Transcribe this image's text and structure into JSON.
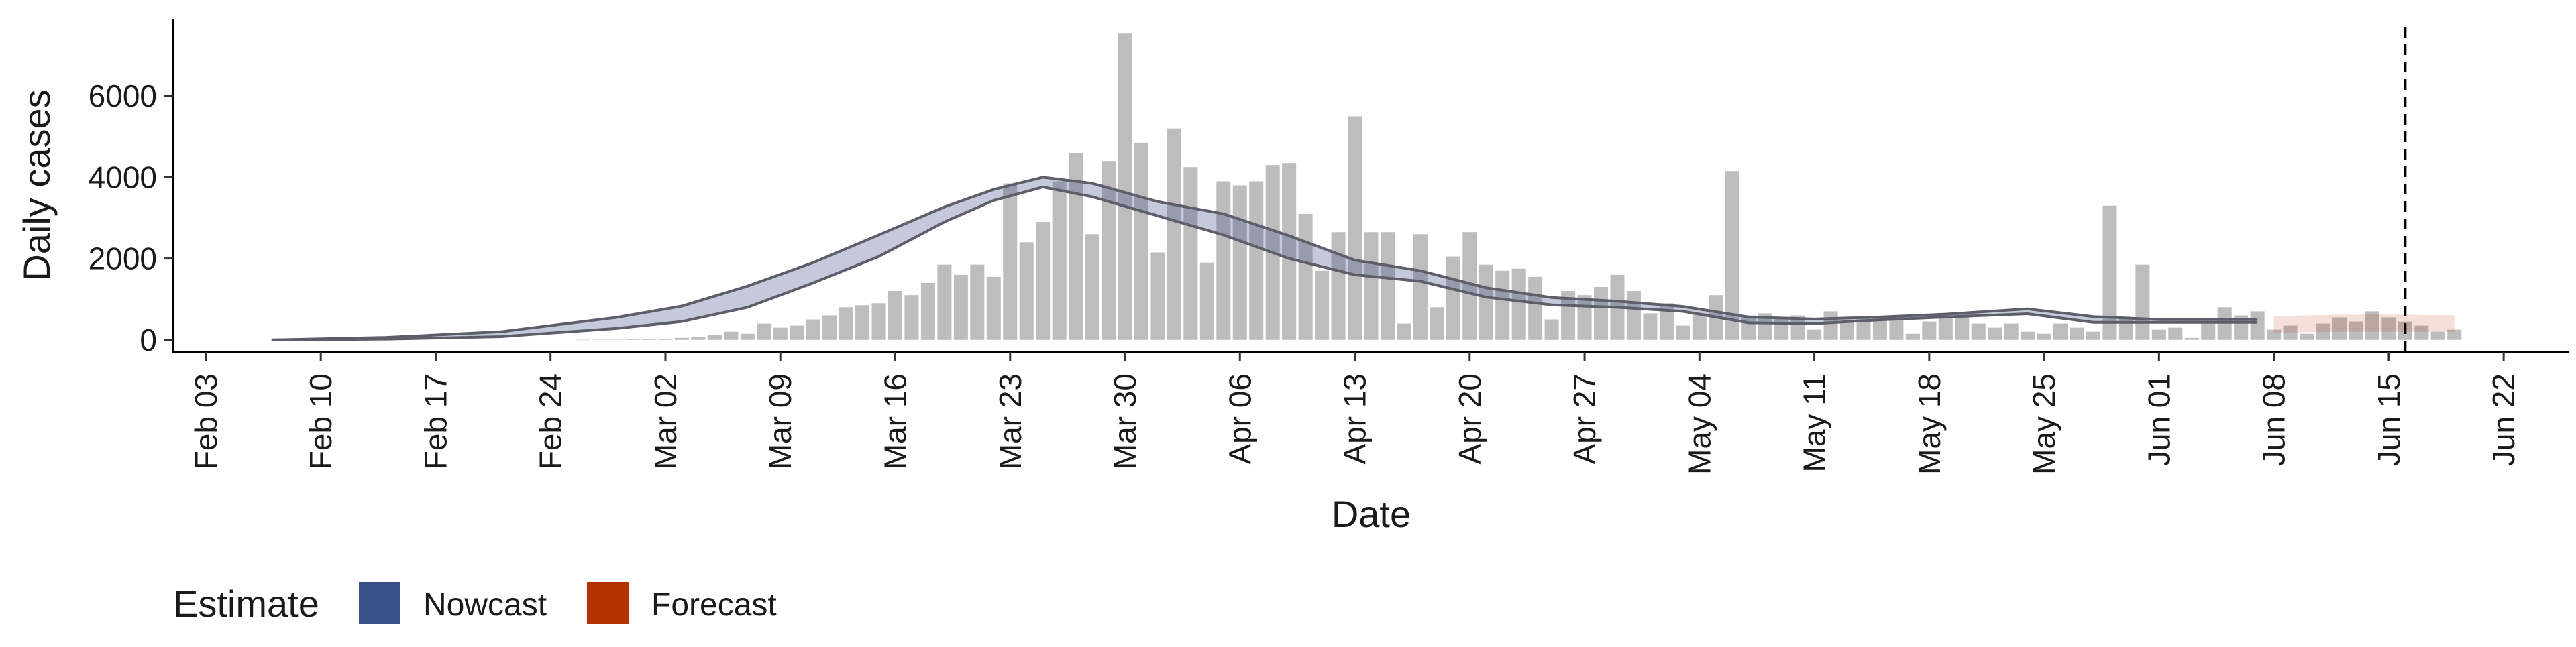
{
  "chart_data": {
    "type": "bar",
    "xlabel": "Date",
    "ylabel": "Daily cases",
    "ylim": [
      -300,
      7900
    ],
    "yticks": [
      0,
      2000,
      4000,
      6000
    ],
    "xlim": [
      "2020-02-01",
      "2020-06-26"
    ],
    "xticks": [
      "2020-02-03",
      "2020-02-10",
      "2020-02-17",
      "2020-02-24",
      "2020-03-02",
      "2020-03-09",
      "2020-03-16",
      "2020-03-23",
      "2020-03-30",
      "2020-04-06",
      "2020-04-13",
      "2020-04-20",
      "2020-04-27",
      "2020-05-04",
      "2020-05-11",
      "2020-05-18",
      "2020-05-25",
      "2020-06-01",
      "2020-06-08",
      "2020-06-15",
      "2020-06-22"
    ],
    "xtick_labels": [
      "Feb 03",
      "Feb 10",
      "Feb 17",
      "Feb 24",
      "Mar 02",
      "Mar 09",
      "Mar 16",
      "Mar 23",
      "Mar 30",
      "Apr 06",
      "Apr 13",
      "Apr 20",
      "Apr 27",
      "May 04",
      "May 11",
      "May 18",
      "May 25",
      "Jun 01",
      "Jun 08",
      "Jun 15",
      "Jun 22"
    ],
    "bars": {
      "start_date": "2020-02-26",
      "values": [
        3,
        5,
        8,
        12,
        20,
        30,
        50,
        80,
        120,
        200,
        150,
        400,
        300,
        350,
        500,
        600,
        800,
        850,
        900,
        1200,
        1100,
        1400,
        1850,
        1600,
        1850,
        1550,
        3850,
        2400,
        2900,
        3900,
        4600,
        2600,
        4400,
        7550,
        4850,
        2150,
        5200,
        4250,
        1900,
        3900,
        3800,
        3900,
        4300,
        4350,
        3100,
        1700,
        2650,
        5500,
        2650,
        2650,
        400,
        2600,
        800,
        2050,
        2650,
        1850,
        1700,
        1750,
        1550,
        500,
        1200,
        1100,
        1300,
        1600,
        1200,
        650,
        900,
        350,
        650,
        1100,
        4150,
        600,
        650,
        550,
        600,
        250,
        700,
        450,
        550,
        550,
        550,
        150,
        450,
        600,
        650,
        400,
        300,
        400,
        200,
        150,
        400,
        300,
        200,
        3300,
        550,
        1850,
        250,
        300,
        50,
        400,
        800,
        600,
        700,
        250,
        350,
        150,
        400,
        550,
        450,
        700,
        550,
        450,
        350,
        200,
        250
      ]
    },
    "series": [
      {
        "name": "Nowcast",
        "color": "#3a5089",
        "dates": [
          "2020-02-07",
          "2020-02-14",
          "2020-02-21",
          "2020-02-28",
          "2020-03-03",
          "2020-03-07",
          "2020-03-11",
          "2020-03-15",
          "2020-03-19",
          "2020-03-22",
          "2020-03-25",
          "2020-03-28",
          "2020-04-01",
          "2020-04-05",
          "2020-04-09",
          "2020-04-13",
          "2020-04-17",
          "2020-04-21",
          "2020-04-25",
          "2020-04-29",
          "2020-05-03",
          "2020-05-07",
          "2020-05-11",
          "2020-05-15",
          "2020-05-19",
          "2020-05-24",
          "2020-05-28",
          "2020-06-01",
          "2020-06-05",
          "2020-06-07"
        ],
        "upper": [
          0,
          60,
          200,
          550,
          830,
          1320,
          1900,
          2580,
          3270,
          3700,
          4000,
          3850,
          3400,
          3100,
          2560,
          1960,
          1700,
          1280,
          1040,
          950,
          820,
          560,
          510,
          560,
          630,
          760,
          570,
          500,
          500,
          500
        ],
        "lower": [
          0,
          20,
          80,
          280,
          450,
          800,
          1400,
          2050,
          2900,
          3430,
          3760,
          3520,
          3050,
          2580,
          2000,
          1600,
          1440,
          1050,
          860,
          800,
          700,
          420,
          400,
          490,
          560,
          640,
          430,
          430,
          430,
          430
        ]
      },
      {
        "name": "Forecast",
        "color": "#b33200",
        "dates": [
          "2020-06-08",
          "2020-06-12",
          "2020-06-16",
          "2020-06-19"
        ],
        "upper": [
          580,
          620,
          620,
          600
        ],
        "lower": [
          180,
          200,
          200,
          200
        ]
      }
    ],
    "vline_date": "2020-06-16",
    "legend": {
      "title": "Estimate",
      "placement": "bottom-left",
      "items": [
        {
          "label": "Nowcast",
          "color": "#3a5089"
        },
        {
          "label": "Forecast",
          "color": "#b33200"
        }
      ]
    },
    "grid": false
  }
}
